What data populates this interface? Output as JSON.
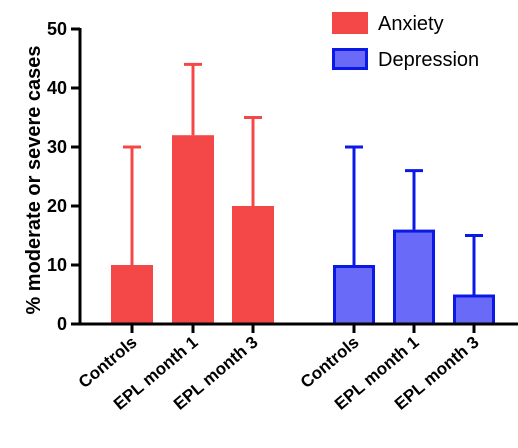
{
  "chart_data": {
    "type": "bar",
    "ylabel": "% moderate or severe cases",
    "xlabel": "",
    "ylim": [
      0,
      50
    ],
    "yticks": [
      0,
      10,
      20,
      30,
      40,
      50
    ],
    "legend_position": "top-right",
    "series": [
      {
        "name": "Anxiety",
        "color": "#f44848",
        "categories": [
          "Controls",
          "EPL month 1",
          "EPL month 3"
        ],
        "values": [
          10,
          32,
          20
        ],
        "error_upper": [
          30,
          44,
          35
        ]
      },
      {
        "name": "Depression",
        "color": "#6a6af8",
        "stroke": "#0b19e6",
        "categories": [
          "Controls",
          "EPL month 1",
          "EPL month 3"
        ],
        "values": [
          10,
          16,
          5
        ],
        "error_upper": [
          30,
          26,
          15
        ]
      }
    ]
  }
}
